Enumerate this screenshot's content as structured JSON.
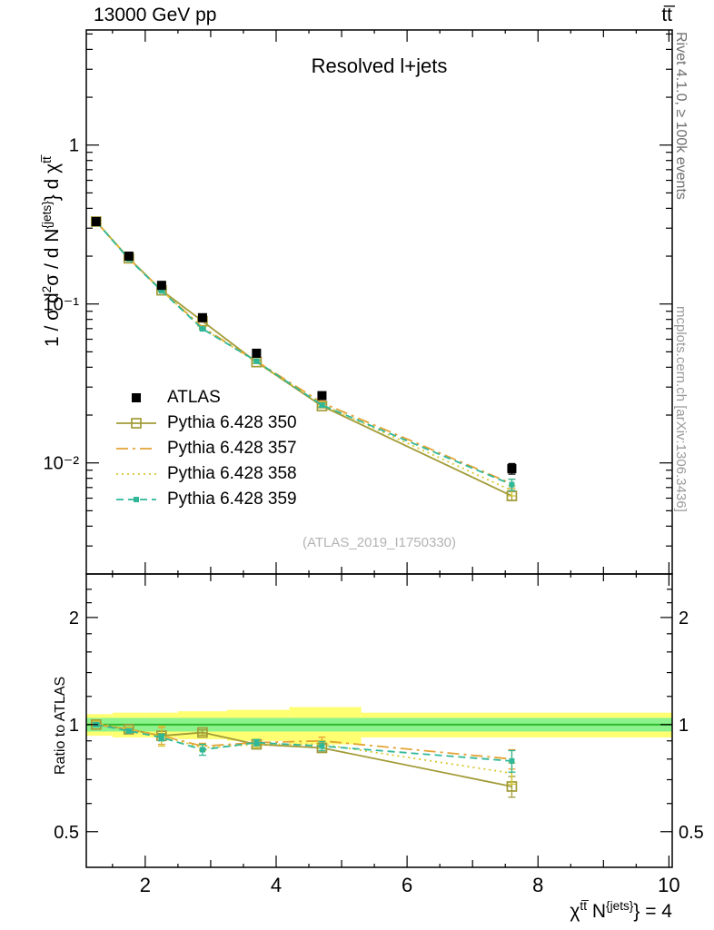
{
  "header": {
    "left": "13000 GeV pp",
    "right": "tt̅"
  },
  "watermark": "(ATLAS_2019_I1750330)",
  "side_notes": {
    "top": "Rivet 4.1.0, ≥ 100k events",
    "bottom": "mcplots.cern.ch [arXiv:1306.3436]"
  },
  "chart_data": {
    "type": "line",
    "title": "Resolved l+jets",
    "ratio_ylabel": "Ratio to ATLAS",
    "main_ylabel_segments": [
      {
        "text": "1 / σ d"
      },
      {
        "text": "2",
        "style": "sup"
      },
      {
        "text": "σ / d N"
      },
      {
        "text": "{jets}",
        "style": "sup"
      },
      {
        "text": "}"
      },
      {
        "text": " d χ"
      },
      {
        "text": "tt̅",
        "style": "sup"
      }
    ],
    "xlabel_segments": [
      {
        "text": "χ"
      },
      {
        "text": "tt̅",
        "style": "sup"
      },
      {
        "text": " N"
      },
      {
        "text": "{jets}",
        "style": "sup"
      },
      {
        "text": "}"
      },
      {
        "text": " = 4"
      }
    ],
    "x_range": [
      1.1,
      10.05
    ],
    "x_tick_values": [
      2,
      4,
      6,
      8,
      10
    ],
    "x_tick_labels": [
      "2",
      "4",
      "6",
      "8",
      "10"
    ],
    "x": [
      1.25,
      1.75,
      2.25,
      2.875,
      3.7,
      4.7,
      7.6
    ],
    "main_panel": {
      "yscale": "log",
      "y_range": [
        0.002,
        5.3
      ],
      "y_tick_values": [
        1,
        0.1,
        0.01
      ],
      "y_tick_labels": [
        "1",
        "10⁻¹",
        "10⁻²"
      ]
    },
    "ratio_panel": {
      "yscale": "log",
      "y_range": [
        0.397,
        2.65
      ],
      "y_tick_values": [
        2,
        1,
        0.5
      ],
      "y_tick_labels": [
        "2",
        "1",
        "0.5"
      ],
      "y_minor_ticks": [
        0.6,
        0.7,
        0.8,
        0.9,
        1.2,
        1.4,
        1.6,
        1.8,
        2.2,
        2.4
      ]
    },
    "series": [
      {
        "id": "atlas",
        "name": "ATLAS",
        "color": "#000000",
        "line": "none",
        "marker": "square-filled",
        "marker_size": 10,
        "values": [
          0.33,
          0.2,
          0.131,
          0.082,
          0.049,
          0.0265,
          0.0092
        ],
        "errors": [
          0.012,
          0.007,
          0.004,
          0.0028,
          0.0018,
          0.0012,
          0.0007
        ],
        "ratio": null,
        "ratio_errors": null
      },
      {
        "id": "py350",
        "name": "Pythia 6.428 350",
        "color": "#a29b37",
        "line": "solid",
        "marker": "square-open",
        "marker_size": 10,
        "values": [
          0.33,
          0.194,
          0.122,
          0.0779,
          0.0431,
          0.0228,
          0.0062
        ],
        "errors": [
          0.003,
          0.002,
          0.0015,
          0.001,
          0.0008,
          0.0006,
          0.0004
        ],
        "ratio": [
          1.0,
          0.97,
          0.93,
          0.95,
          0.88,
          0.86,
          0.67
        ],
        "ratio_errors": [
          0.012,
          0.012,
          0.014,
          0.016,
          0.018,
          0.022,
          0.045
        ]
      },
      {
        "id": "py357",
        "name": "Pythia 6.428 357",
        "color": "#e3a335",
        "line": "dashdot",
        "marker": "none",
        "marker_size": 0,
        "values": [
          0.33,
          0.194,
          0.122,
          0.0713,
          0.0436,
          0.0239,
          0.0074
        ],
        "errors": [
          0.003,
          0.002,
          0.0015,
          0.001,
          0.0008,
          0.0006,
          0.0005
        ],
        "ratio": [
          1.0,
          0.97,
          0.93,
          0.87,
          0.89,
          0.9,
          0.8
        ],
        "ratio_errors": [
          0.012,
          0.012,
          0.05,
          0.016,
          0.018,
          0.022,
          0.05
        ]
      },
      {
        "id": "py358",
        "name": "Pythia 6.428 358",
        "color": "#d6c72e",
        "line": "dotted",
        "marker": "none",
        "marker_size": 0,
        "values": [
          0.333,
          0.194,
          0.122,
          0.0705,
          0.0431,
          0.0233,
          0.0067
        ],
        "errors": [
          0.003,
          0.002,
          0.0015,
          0.001,
          0.0008,
          0.0006,
          0.0005
        ],
        "ratio": [
          1.01,
          0.97,
          0.93,
          0.86,
          0.88,
          0.88,
          0.73
        ],
        "ratio_errors": [
          0.012,
          0.012,
          0.06,
          0.016,
          0.018,
          0.022,
          0.05
        ]
      },
      {
        "id": "py359",
        "name": "Pythia 6.428 359",
        "color": "#2fb898",
        "line": "dashed",
        "marker": "square-filled",
        "marker_size": 6,
        "values": [
          0.33,
          0.192,
          0.121,
          0.0697,
          0.0436,
          0.0231,
          0.0073
        ],
        "errors": [
          0.003,
          0.002,
          0.0015,
          0.001,
          0.0008,
          0.0006,
          0.0006
        ],
        "ratio": [
          1.0,
          0.96,
          0.92,
          0.85,
          0.89,
          0.87,
          0.79
        ],
        "ratio_errors": [
          0.012,
          0.012,
          0.02,
          0.03,
          0.018,
          0.025,
          0.055
        ]
      }
    ],
    "bands": {
      "yellow": {
        "color": "#ffff72",
        "bins": [
          {
            "x0": 1.1,
            "x1": 1.5,
            "lo": 0.93,
            "hi": 1.07
          },
          {
            "x0": 1.5,
            "x1": 2.0,
            "lo": 0.92,
            "hi": 1.08
          },
          {
            "x0": 2.0,
            "x1": 2.5,
            "lo": 0.92,
            "hi": 1.08
          },
          {
            "x0": 2.5,
            "x1": 3.25,
            "lo": 0.91,
            "hi": 1.09
          },
          {
            "x0": 3.25,
            "x1": 4.2,
            "lo": 0.9,
            "hi": 1.1
          },
          {
            "x0": 4.2,
            "x1": 5.3,
            "lo": 0.88,
            "hi": 1.12
          },
          {
            "x0": 5.3,
            "x1": 10.05,
            "lo": 0.92,
            "hi": 1.08
          }
        ]
      },
      "green": {
        "color": "#8cf28c",
        "bins": [
          {
            "x0": 1.1,
            "x1": 10.05,
            "lo": 0.956,
            "hi": 1.044
          }
        ]
      },
      "reference_line": {
        "y": 1,
        "color": "#2db92d"
      }
    }
  }
}
